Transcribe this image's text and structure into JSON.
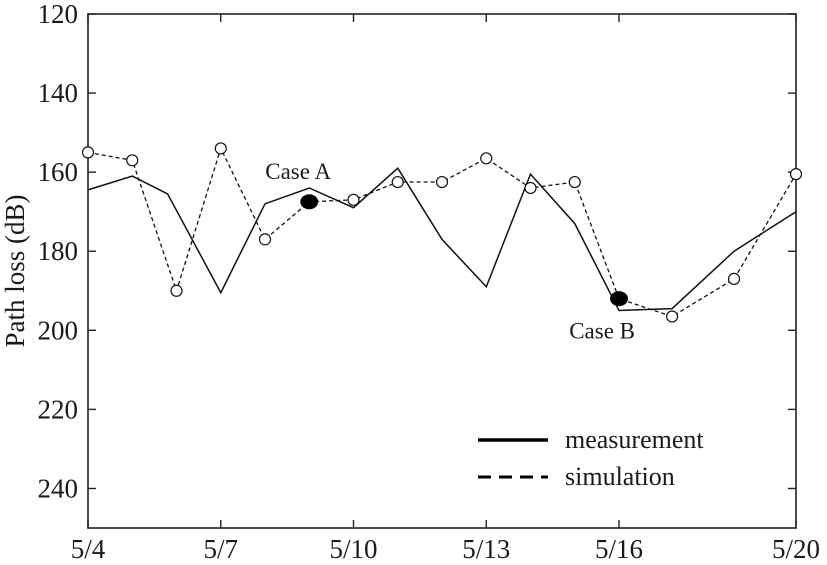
{
  "chart_data": {
    "type": "line",
    "ylabel": "Path loss (dB)",
    "xlabel": "",
    "x_ticks": [
      "5/4",
      "5/7",
      "5/10",
      "5/13",
      "5/16",
      "5/20"
    ],
    "y_ticks": [
      "120",
      "140",
      "160",
      "180",
      "200",
      "220",
      "240"
    ],
    "ylim": [
      120,
      250
    ],
    "y_inverted": true,
    "xlim": [
      "5/4",
      "5/20"
    ],
    "x_tick_days": [
      4,
      7,
      10,
      13,
      16,
      20
    ],
    "series": [
      {
        "name": "measurement",
        "style": "solid",
        "points": [
          {
            "x": 4.0,
            "y": 164.5
          },
          {
            "x": 5.0,
            "y": 161.0
          },
          {
            "x": 5.8,
            "y": 165.5
          },
          {
            "x": 7.0,
            "y": 190.5
          },
          {
            "x": 8.0,
            "y": 168.0
          },
          {
            "x": 9.0,
            "y": 164.0
          },
          {
            "x": 10.0,
            "y": 169.0
          },
          {
            "x": 11.0,
            "y": 159.0
          },
          {
            "x": 12.0,
            "y": 177.0
          },
          {
            "x": 13.0,
            "y": 189.0
          },
          {
            "x": 14.0,
            "y": 160.5
          },
          {
            "x": 15.0,
            "y": 173.0
          },
          {
            "x": 16.0,
            "y": 195.0
          },
          {
            "x": 17.2,
            "y": 194.5
          },
          {
            "x": 18.6,
            "y": 180.0
          },
          {
            "x": 20.0,
            "y": 170.0
          }
        ]
      },
      {
        "name": "simulation",
        "style": "dashed",
        "marker": "open-circle",
        "points": [
          {
            "x": 4.0,
            "y": 155.0
          },
          {
            "x": 5.0,
            "y": 157.0
          },
          {
            "x": 6.0,
            "y": 190.0
          },
          {
            "x": 7.0,
            "y": 154.0
          },
          {
            "x": 8.0,
            "y": 177.0
          },
          {
            "x": 9.0,
            "y": 167.5
          },
          {
            "x": 10.0,
            "y": 167.0
          },
          {
            "x": 11.0,
            "y": 162.5
          },
          {
            "x": 12.0,
            "y": 162.5
          },
          {
            "x": 13.0,
            "y": 156.5
          },
          {
            "x": 14.0,
            "y": 164.0
          },
          {
            "x": 15.0,
            "y": 162.5
          },
          {
            "x": 16.0,
            "y": 192.0
          },
          {
            "x": 17.2,
            "y": 196.5
          },
          {
            "x": 18.6,
            "y": 187.0
          },
          {
            "x": 20.0,
            "y": 160.5
          }
        ]
      }
    ],
    "annotations": [
      {
        "label": "Case A",
        "x": 9.0,
        "y": 167.5
      },
      {
        "label": "Case B",
        "x": 16.0,
        "y": 192.0
      }
    ],
    "legend": {
      "position": "bottom-right",
      "entries": [
        {
          "label": "measurement",
          "style": "solid"
        },
        {
          "label": "simulation",
          "style": "dashed"
        }
      ]
    },
    "grid": false
  }
}
